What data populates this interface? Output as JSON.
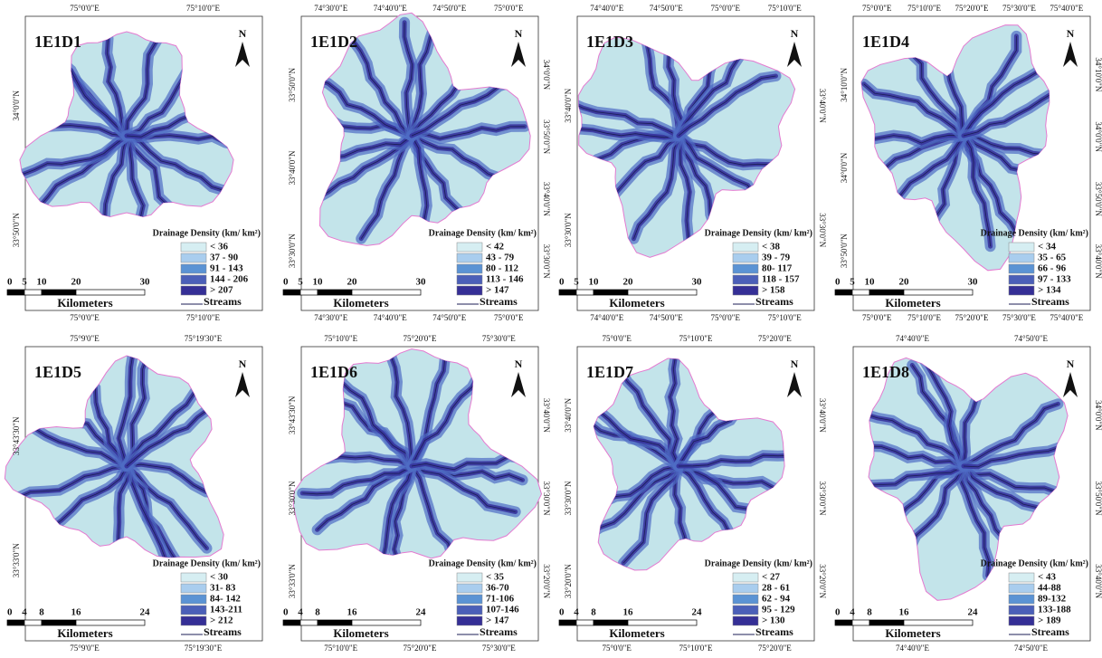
{
  "legend_colors": [
    "#d6eef2",
    "#a9cdee",
    "#5b93d4",
    "#4b5fb8",
    "#352f96"
  ],
  "panels": [
    {
      "title": "1E1D1",
      "north": "N",
      "legend_title": "Drainage Density (km/ km²)",
      "classes": [
        "< 36",
        "37 - 90",
        "91 - 143",
        "144 - 206",
        "> 207"
      ],
      "scale_ticks": [
        "0",
        "5",
        "10",
        "20",
        "30"
      ],
      "scale_unit": "Kilometers",
      "streams": "Streams",
      "top_coords": [
        "75°0'0\"E",
        "75°10'0\"E"
      ],
      "bottom_coords": [
        "75°0'0\"E",
        "75°10'0\"E"
      ],
      "left_coords": [
        "34°0'0\"N",
        "33°50'0\"N"
      ],
      "right_coords": []
    },
    {
      "title": "1E1D2",
      "north": "N",
      "legend_title": "Drainage Density (km/ km²)",
      "classes": [
        "< 42",
        "43 - 79",
        "80 - 112",
        "113 - 146",
        "> 147"
      ],
      "scale_ticks": [
        "0",
        "5",
        "10",
        "20",
        "30"
      ],
      "scale_unit": "Kilometers",
      "streams": "Streams",
      "top_coords": [
        "74°30'0\"E",
        "74°40'0\"E",
        "74°50'0\"E",
        "75°0'0\"E"
      ],
      "bottom_coords": [
        "74°30'0\"E",
        "74°40'0\"E",
        "74°50'0\"E",
        "75°0'0\"E"
      ],
      "left_coords": [
        "33°50'0\"N",
        "33°40'0\"N",
        "33°30'0\"N"
      ],
      "right_coords": [
        "34°0'0\"N",
        "33°50'0\"N",
        "33°40'0\"N",
        "33°30'0\"N"
      ]
    },
    {
      "title": "1E1D3",
      "north": "N",
      "legend_title": "Drainage Density (km/ km²)",
      "classes": [
        "< 38",
        "39 - 79",
        "80- 117",
        "118 - 157",
        "> 158"
      ],
      "scale_ticks": [
        "0",
        "5",
        "10",
        "20",
        "30"
      ],
      "scale_unit": "Kilometers",
      "streams": "Streams",
      "top_coords": [
        "74°40'0\"E",
        "74°50'0\"E",
        "75°0'0\"E",
        "75°10'0\"E"
      ],
      "bottom_coords": [
        "74°40'0\"E",
        "74°50'0\"E",
        "75°0'0\"E",
        "75°10'0\"E"
      ],
      "left_coords": [
        "33°40'0\"N",
        "33°30'0\"N"
      ],
      "right_coords": [
        "33°40'0\"N",
        "33°30'0\"N"
      ]
    },
    {
      "title": "1E1D4",
      "north": "N",
      "legend_title": "Drainage Density (km/ km²)",
      "classes": [
        "< 34",
        "35 - 65",
        "66 - 96",
        "97 - 133",
        "> 134"
      ],
      "scale_ticks": [
        "0",
        "5",
        "10",
        "20",
        "30"
      ],
      "scale_unit": "Kilometers",
      "streams": "Streams",
      "top_coords": [
        "75°0'0\"E",
        "75°10'0\"E",
        "75°20'0\"E",
        "75°30'0\"E",
        "75°40'0\"E"
      ],
      "bottom_coords": [
        "75°0'0\"E",
        "75°10'0\"E",
        "75°20'0\"E",
        "75°30'0\"E",
        "75°40'0\"E"
      ],
      "left_coords": [
        "34°10'0\"N",
        "34°0'0\"N",
        "33°50'0\"N"
      ],
      "right_coords": [
        "34°10'0\"N",
        "34°0'0\"N",
        "33°50'0\"N",
        "33°40'0\"N"
      ]
    },
    {
      "title": "1E1D5",
      "north": "N",
      "legend_title": "Drainage Density (km/ km²)",
      "classes": [
        "< 30",
        "31- 83",
        "84- 142",
        "143-211",
        "> 212"
      ],
      "scale_ticks": [
        "0",
        "4",
        "8",
        "16",
        "24"
      ],
      "scale_unit": "Kilometers",
      "streams": "Streams",
      "top_coords": [
        "75°9'0\"E",
        "75°19'30\"E"
      ],
      "bottom_coords": [
        "75°9'0\"E",
        "75°19'30\"E"
      ],
      "left_coords": [
        "33°43'30\"N",
        "33°33'0\"N"
      ],
      "right_coords": []
    },
    {
      "title": "1E1D6",
      "north": "N",
      "legend_title": "Drainage Density (km/ km²)",
      "classes": [
        "< 35",
        "36-70",
        "71-106",
        "107-146",
        "> 147"
      ],
      "scale_ticks": [
        "0",
        "4",
        "8",
        "16",
        "24"
      ],
      "scale_unit": "Kilometers",
      "streams": "Streams",
      "top_coords": [
        "75°10'0\"E",
        "75°20'0\"E",
        "75°30'0\"E"
      ],
      "bottom_coords": [
        "75°10'0\"E",
        "75°20'0\"E",
        "75°30'0\"E"
      ],
      "left_coords": [
        "33°43'30\"N",
        "33°30'0\"N",
        "33°33'0\"N"
      ],
      "right_coords": [
        "33°40'0\"N",
        "33°30'0\"N",
        "33°20'0\"N"
      ]
    },
    {
      "title": "1E1D7",
      "north": "N",
      "legend_title": "Drainage Density (km/ km²)",
      "classes": [
        "< 27",
        "28 - 61",
        "62 - 94",
        "95 - 129",
        "> 130"
      ],
      "scale_ticks": [
        "0",
        "4",
        "8",
        "16",
        "24"
      ],
      "scale_unit": "Kilometers",
      "streams": "Streams",
      "top_coords": [
        "75°0'0\"E",
        "75°10'0\"E",
        "75°20'0\"E"
      ],
      "bottom_coords": [
        "75°0'0\"E",
        "75°10'0\"E",
        "75°20'0\"E"
      ],
      "left_coords": [
        "33°40'0\"N",
        "33°30'0\"N",
        "33°20'0\"N"
      ],
      "right_coords": [
        "33°40'0\"N",
        "33°30'0\"N",
        "33°20'0\"N"
      ]
    },
    {
      "title": "1E1D8",
      "north": "N",
      "legend_title": "Drainage Density (km/ km²)",
      "classes": [
        "< 43",
        "44-88",
        "89-132",
        "133-188",
        "> 189"
      ],
      "scale_ticks": [
        "0",
        "4",
        "8",
        "16",
        "24"
      ],
      "scale_unit": "Kilometers",
      "streams": "Streams",
      "top_coords": [
        "74°40'0\"E",
        "74°50'0\"E"
      ],
      "bottom_coords": [
        "74°40'0\"E",
        "74°50'0\"E"
      ],
      "left_coords": [],
      "right_coords": [
        "34°0'0\"N",
        "33°50'0\"N",
        "33°40'0\"N"
      ]
    }
  ]
}
